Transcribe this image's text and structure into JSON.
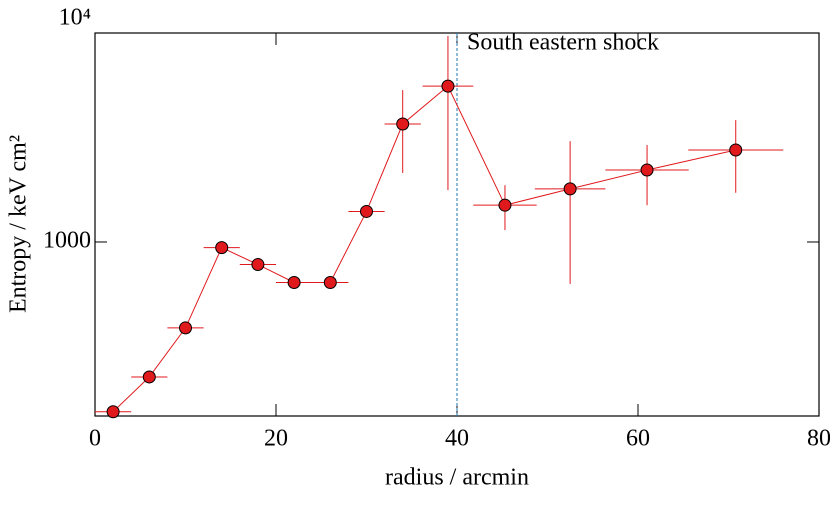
{
  "chart_data": {
    "type": "errorbar-line",
    "xlabel": "radius / arcmin",
    "ylabel": "Entropy / keV cm²",
    "xlim": [
      0,
      80
    ],
    "xticks": [
      0,
      20,
      40,
      60,
      80
    ],
    "ylim": [
      147,
      10000
    ],
    "log_y": true,
    "yticks": [
      1000,
      {
        "value": 10000,
        "label": "10⁴"
      }
    ],
    "series": [
      {
        "name": "Entropy",
        "color": "#e0191c",
        "line_color": "#e0191c",
        "x": [
          2,
          6,
          10,
          14,
          18,
          22,
          26,
          30,
          34,
          39,
          45.3,
          52.5,
          61,
          70.8
        ],
        "values": [
          154,
          226,
          388,
          940,
          780,
          640,
          640,
          1400,
          3670,
          5570,
          1500,
          1795,
          2210,
          2755
        ],
        "xerr": [
          2,
          2,
          2,
          2,
          2,
          2,
          2,
          2,
          2,
          2.8,
          3.5,
          3.9,
          4.6,
          5.25
        ],
        "y_lo": [
          150,
          220,
          375,
          915,
          760,
          625,
          625,
          1320,
          2140,
          1770,
          1140,
          630,
          1500,
          1720
        ],
        "y_hi": [
          158,
          232,
          400,
          965,
          800,
          655,
          655,
          1480,
          5330,
          9680,
          1870,
          3040,
          2910,
          3830
        ]
      }
    ],
    "vline": {
      "x": 40,
      "label": "South eastern shock",
      "color": "#1f77b4"
    }
  }
}
